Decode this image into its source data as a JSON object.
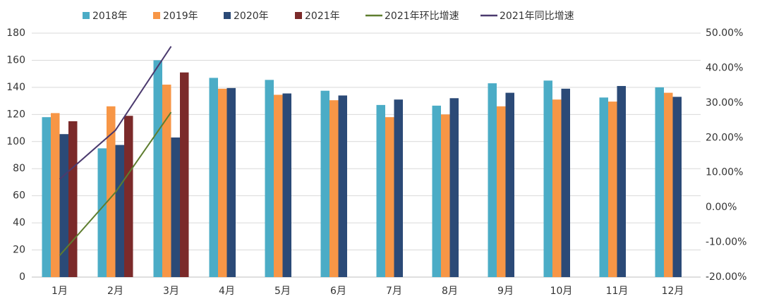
{
  "chart_data": {
    "type": "bar",
    "categories": [
      "1月",
      "2月",
      "3月",
      "4月",
      "5月",
      "6月",
      "7月",
      "8月",
      "9月",
      "10月",
      "11月",
      "12月"
    ],
    "series": [
      {
        "name": "2018年",
        "color": "#4bacc6",
        "values": [
          118,
          95,
          160,
          147,
          145.5,
          137.5,
          127,
          126.5,
          143,
          145,
          132.5,
          140
        ]
      },
      {
        "name": "2019年",
        "color": "#f79646",
        "values": [
          121,
          126,
          142,
          139,
          134.5,
          130.5,
          118,
          120,
          126,
          131,
          129.5,
          136
        ]
      },
      {
        "name": "2020年",
        "color": "#2b4a77",
        "values": [
          105.5,
          97.5,
          103,
          139.5,
          135.5,
          134,
          131,
          132,
          136,
          139,
          141,
          133
        ]
      },
      {
        "name": "2021年",
        "color": "#7b2a2a",
        "values": [
          115,
          119,
          151,
          null,
          null,
          null,
          null,
          null,
          null,
          null,
          null,
          null
        ]
      },
      {
        "name": "2021年环比增速",
        "type": "line",
        "axis": "y2",
        "color": "#5e7d2f",
        "values": [
          -13.8,
          4.3,
          27.3,
          null,
          null,
          null,
          null,
          null,
          null,
          null,
          null,
          null
        ]
      },
      {
        "name": "2021年同比增速",
        "type": "line",
        "axis": "y2",
        "color": "#4b3a6e",
        "values": [
          8.1,
          22.1,
          46.2,
          null,
          null,
          null,
          null,
          null,
          null,
          null,
          null,
          null
        ]
      }
    ],
    "ylim": [
      0,
      180
    ],
    "yticks": [
      0,
      20,
      40,
      60,
      80,
      100,
      120,
      140,
      160,
      180
    ],
    "y2lim": [
      -20,
      50
    ],
    "y2ticks": [
      {
        "value": -20,
        "label": "-20.00%"
      },
      {
        "value": -10,
        "label": "-10.00%"
      },
      {
        "value": 0,
        "label": "0.00%"
      },
      {
        "value": 10,
        "label": "10.00%"
      },
      {
        "value": 20,
        "label": "20.00%"
      },
      {
        "value": 30,
        "label": "30.00%"
      },
      {
        "value": 40,
        "label": "40.00%"
      },
      {
        "value": 50,
        "label": "50.00%"
      }
    ],
    "grid": true
  }
}
